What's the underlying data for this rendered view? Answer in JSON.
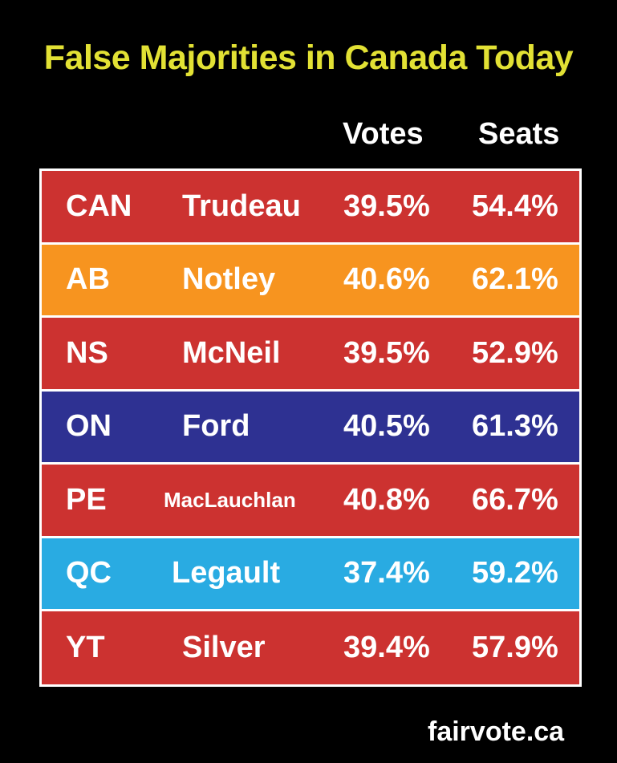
{
  "title": "False Majorities in Canada Today",
  "footer": "fairvote.ca",
  "colors": {
    "title": "#e2e134",
    "background": "#000000"
  },
  "chart_data": {
    "type": "table",
    "title": "False Majorities in Canada Today",
    "columns": [
      "",
      "",
      "Votes",
      "Seats"
    ],
    "rows": [
      {
        "code": "CAN",
        "leader": "Trudeau",
        "votes": "39.5%",
        "seats": "54.4%",
        "color": "#cc3230"
      },
      {
        "code": "AB",
        "leader": "Notley",
        "votes": "40.6%",
        "seats": "62.1%",
        "color": "#f7941f"
      },
      {
        "code": "NS",
        "leader": "McNeil",
        "votes": "39.5%",
        "seats": "52.9%",
        "color": "#cc3230"
      },
      {
        "code": "ON",
        "leader": "Ford",
        "votes": "40.5%",
        "seats": "61.3%",
        "color": "#2e3192"
      },
      {
        "code": "PE",
        "leader": "MacLauchlan",
        "votes": "40.8%",
        "seats": "66.7%",
        "color": "#cc3230"
      },
      {
        "code": "QC",
        "leader": "Legault",
        "votes": "37.4%",
        "seats": "59.2%",
        "color": "#29abe2"
      },
      {
        "code": "YT",
        "leader": "Silver",
        "votes": "39.4%",
        "seats": "57.9%",
        "color": "#cc3230"
      }
    ]
  }
}
